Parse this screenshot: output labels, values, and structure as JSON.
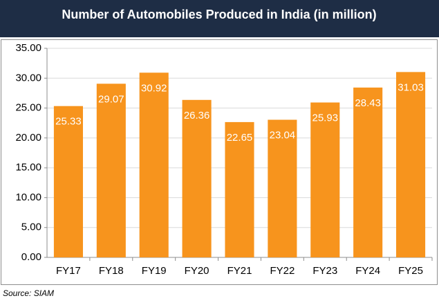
{
  "chart_data": {
    "type": "bar",
    "title": "Number of Automobiles Produced in India (in million)",
    "categories": [
      "FY17",
      "FY18",
      "FY19",
      "FY20",
      "FY21",
      "FY22",
      "FY23",
      "FY24",
      "FY25"
    ],
    "values": [
      25.33,
      29.07,
      30.92,
      26.36,
      22.65,
      23.04,
      25.93,
      28.43,
      31.03
    ],
    "color": "#f7941d",
    "ylim": [
      0,
      35
    ],
    "yticks": [
      {
        "value": 0,
        "label": "0.00"
      },
      {
        "value": 5,
        "label": "5.00"
      },
      {
        "value": 10,
        "label": "10.00"
      },
      {
        "value": 15,
        "label": "15.00"
      },
      {
        "value": 20,
        "label": "20.00"
      },
      {
        "value": 25,
        "label": "25.00"
      },
      {
        "value": 30,
        "label": "30.00"
      },
      {
        "value": 35,
        "label": "35.00"
      }
    ],
    "grid": true,
    "source": "Source: SIAM"
  }
}
